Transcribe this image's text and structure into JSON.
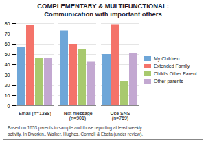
{
  "chart_data": {
    "type": "bar",
    "title": "COMPLEMENTARY & MULTIFUNCTIONAL:",
    "subtitle": "Communication with important others",
    "categories": [
      "Email (n=1388)",
      "Text message\n(n=901)",
      "Use SNS\n(n=769)"
    ],
    "series": [
      {
        "name": "My Children",
        "color": "#6EA6D8",
        "values": [
          57,
          73,
          50
        ]
      },
      {
        "name": "Extended Family",
        "color": "#F4736A",
        "values": [
          78,
          60,
          79
        ]
      },
      {
        "name": "Child's Other Parent",
        "color": "#A8C96E",
        "values": [
          46,
          55,
          24
        ]
      },
      {
        "name": "Other parents",
        "color": "#C3A8D1",
        "values": [
          46,
          43,
          51
        ]
      }
    ],
    "ylim": [
      0,
      80
    ],
    "yticks": [
      0,
      10,
      20,
      30,
      40,
      50,
      60,
      70,
      80
    ],
    "grid": true,
    "legend": "right",
    "annotations": [
      "Based on 1653 parents in sample and those reporting at least weekly\nactivity. In Dworkin,. Walker,  Hughes, Connell & Ebata (under review)."
    ]
  }
}
